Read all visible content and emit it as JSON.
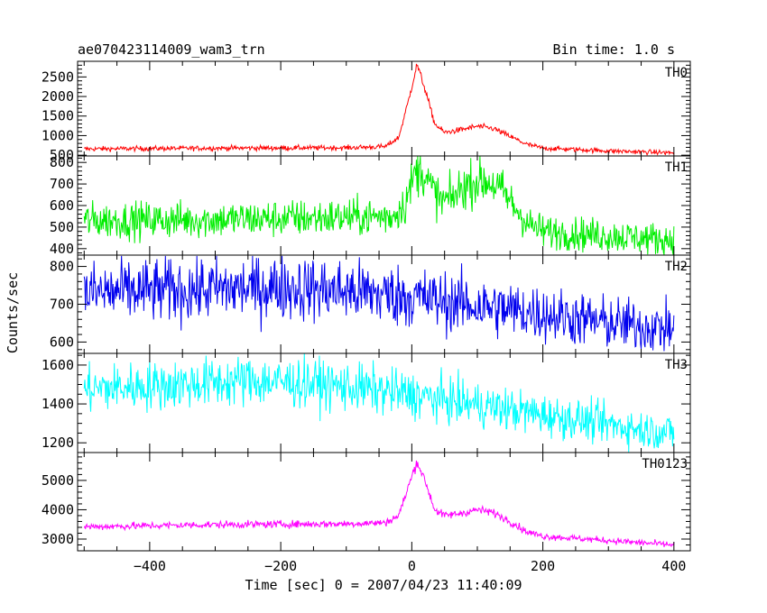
{
  "chart_data": {
    "type": "line",
    "title": "ae070423114009_wam3_trn",
    "subtitle": "Bin time: 1.0 s",
    "xlabel": "Time [sec] 0 = 2007/04/23 11:40:09",
    "ylabel": "Counts/sec",
    "xlim": [
      -510,
      425
    ],
    "x_ticks": [
      -400,
      -200,
      0,
      200,
      400
    ],
    "x_tick_labels": [
      "−400",
      "−200",
      "0",
      "200",
      "400"
    ],
    "x_range": [
      -500,
      400
    ],
    "grid": false,
    "panels": [
      {
        "name": "TH0",
        "color": "#ff0000",
        "ylim": [
          480,
          2900
        ],
        "yticks": [
          500,
          1000,
          1500,
          2000,
          2500
        ],
        "y_tick_labels": [
          "500",
          "1000",
          "1500",
          "2000",
          "2500"
        ],
        "profile": [
          [
            -500,
            660
          ],
          [
            -300,
            680
          ],
          [
            -100,
            690
          ],
          [
            -40,
            720
          ],
          [
            -20,
            950
          ],
          [
            -5,
            1900
          ],
          [
            8,
            2820
          ],
          [
            20,
            2200
          ],
          [
            35,
            1300
          ],
          [
            50,
            1080
          ],
          [
            75,
            1150
          ],
          [
            100,
            1240
          ],
          [
            125,
            1180
          ],
          [
            150,
            980
          ],
          [
            175,
            780
          ],
          [
            200,
            680
          ],
          [
            300,
            610
          ],
          [
            400,
            560
          ]
        ],
        "noise": 40
      },
      {
        "name": "TH1",
        "color": "#00ee00",
        "ylim": [
          370,
          830
        ],
        "yticks": [
          400,
          500,
          600,
          700,
          800
        ],
        "y_tick_labels": [
          "400",
          "500",
          "600",
          "700",
          "800"
        ],
        "profile": [
          [
            -500,
            530
          ],
          [
            -300,
            535
          ],
          [
            -100,
            545
          ],
          [
            -30,
            550
          ],
          [
            -10,
            610
          ],
          [
            5,
            750
          ],
          [
            15,
            770
          ],
          [
            30,
            680
          ],
          [
            45,
            620
          ],
          [
            60,
            630
          ],
          [
            80,
            690
          ],
          [
            100,
            715
          ],
          [
            120,
            710
          ],
          [
            140,
            660
          ],
          [
            160,
            580
          ],
          [
            180,
            510
          ],
          [
            200,
            480
          ],
          [
            300,
            460
          ],
          [
            400,
            440
          ]
        ],
        "noise": 45
      },
      {
        "name": "TH2",
        "color": "#0000ee",
        "ylim": [
          570,
          830
        ],
        "yticks": [
          600,
          700,
          800
        ],
        "y_tick_labels": [
          "600",
          "700",
          "800"
        ],
        "profile": [
          [
            -500,
            730
          ],
          [
            -400,
            735
          ],
          [
            -300,
            740
          ],
          [
            -200,
            745
          ],
          [
            -100,
            735
          ],
          [
            0,
            720
          ],
          [
            100,
            695
          ],
          [
            200,
            675
          ],
          [
            300,
            650
          ],
          [
            400,
            635
          ]
        ],
        "noise": 38
      },
      {
        "name": "TH3",
        "color": "#00ffff",
        "ylim": [
          1150,
          1660
        ],
        "yticks": [
          1200,
          1400,
          1600
        ],
        "y_tick_labels": [
          "1200",
          "1400",
          "1600"
        ],
        "profile": [
          [
            -500,
            1475
          ],
          [
            -350,
            1500
          ],
          [
            -250,
            1520
          ],
          [
            -150,
            1505
          ],
          [
            -50,
            1470
          ],
          [
            50,
            1420
          ],
          [
            150,
            1370
          ],
          [
            250,
            1320
          ],
          [
            350,
            1270
          ],
          [
            400,
            1250
          ]
        ],
        "noise": 55
      },
      {
        "name": "TH0123",
        "color": "#ff00ff",
        "ylim": [
          2600,
          5950
        ],
        "yticks": [
          3000,
          4000,
          5000
        ],
        "y_tick_labels": [
          "3000",
          "4000",
          "5000"
        ],
        "profile": [
          [
            -500,
            3420
          ],
          [
            -300,
            3490
          ],
          [
            -100,
            3520
          ],
          [
            -40,
            3560
          ],
          [
            -20,
            3800
          ],
          [
            -5,
            4800
          ],
          [
            8,
            5650
          ],
          [
            20,
            5000
          ],
          [
            35,
            4000
          ],
          [
            50,
            3800
          ],
          [
            75,
            3880
          ],
          [
            100,
            4000
          ],
          [
            125,
            3900
          ],
          [
            150,
            3600
          ],
          [
            175,
            3250
          ],
          [
            200,
            3100
          ],
          [
            300,
            2950
          ],
          [
            400,
            2800
          ]
        ],
        "noise": 70
      }
    ]
  }
}
